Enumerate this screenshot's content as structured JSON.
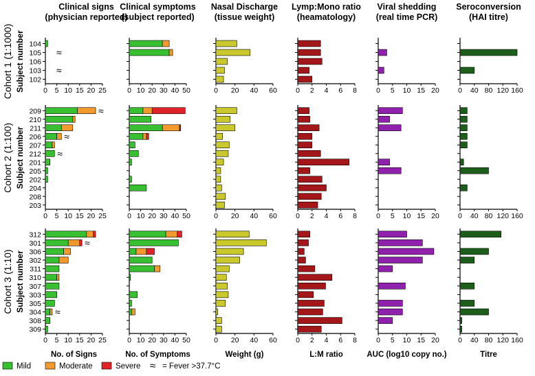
{
  "chart_data": {
    "type": "bar",
    "orientation": "horizontal",
    "colors": {
      "mild": "#39c032",
      "moderate": "#f39a2f",
      "severe": "#e0232a",
      "nasal": "#c9c92d",
      "lm": "#a3171a",
      "viral": "#8f21ad",
      "titre": "#1d5e1c",
      "axis": "#000000"
    },
    "columns": [
      {
        "id": "signs",
        "title1": "Clinical signs",
        "title2": "(physician reported)",
        "xlabel": "No. of Signs",
        "xlim": [
          0,
          25
        ],
        "ticks": [
          "0",
          "5",
          "10",
          "15",
          "20",
          "25"
        ]
      },
      {
        "id": "symptoms",
        "title1": "Clinical symptoms",
        "title2": "(subject reported)",
        "xlabel": "No. of Symptoms",
        "xlim": [
          0,
          50
        ],
        "ticks": [
          "0",
          "10",
          "20",
          "30",
          "40",
          "50"
        ]
      },
      {
        "id": "nasal",
        "title1": "Nasal Discharge",
        "title2": "(tissue weight)",
        "xlabel": "Weight (g)",
        "xlim": [
          0,
          60
        ],
        "ticks": [
          "0",
          "20",
          "40",
          "60"
        ]
      },
      {
        "id": "lm",
        "title1": "Lymp:Mono ratio",
        "title2": "(heamatology)",
        "xlabel": "L:M ratio",
        "xlim": [
          0,
          8
        ],
        "ticks": [
          "0",
          "2",
          "4",
          "6",
          "8"
        ]
      },
      {
        "id": "viral",
        "title1": "Viral shedding",
        "title2": "(real time PCR)",
        "xlabel": "AUC (log10 copy no.)",
        "xlim": [
          0,
          20
        ],
        "ticks": [
          "0",
          "5",
          "10",
          "15",
          "20"
        ]
      },
      {
        "id": "titre",
        "title1": "Seroconversion",
        "title2": "(HAI titre)",
        "xlabel": "Titre",
        "xlim": [
          0,
          160
        ],
        "ticks_by_cohort": [
          [
            "0",
            "40",
            "80",
            "120",
            "160"
          ],
          [
            "0",
            "40",
            "80",
            "120",
            "160"
          ],
          [
            "0",
            "40",
            "80",
            "120",
            "160"
          ]
        ]
      }
    ],
    "cohorts": [
      {
        "label": "Cohort 1 (1:1000)",
        "ylabel": "Subject number",
        "subjects": [
          {
            "id": "104",
            "signs": [
              1,
              0,
              0
            ],
            "symptoms": [
              29,
              6,
              0
            ],
            "nasal": 22,
            "lm": 3.2,
            "viral": 0,
            "titre": 0
          },
          {
            "id": "105",
            "signs": [
              0,
              0,
              0
            ],
            "fever": true,
            "symptoms": [
              35,
              3,
              0
            ],
            "nasal": 36,
            "lm": 3.2,
            "viral": 3,
            "titre": 160
          },
          {
            "id": "106",
            "signs": [
              0,
              0,
              0
            ],
            "symptoms": [
              0,
              0,
              0
            ],
            "nasal": 12,
            "lm": 3.4,
            "viral": 0,
            "titre": 0
          },
          {
            "id": "103",
            "signs": [
              0,
              0,
              0
            ],
            "fever": true,
            "symptoms": [
              0,
              0,
              0
            ],
            "nasal": 9,
            "lm": 1.6,
            "viral": 2,
            "titre": 40
          },
          {
            "id": "102",
            "signs": [
              0,
              0,
              0
            ],
            "symptoms": [
              0,
              0,
              0
            ],
            "nasal": 8,
            "lm": 2.0,
            "viral": 0,
            "titre": 0
          }
        ]
      },
      {
        "label": "Cohort 2 (1:100)",
        "ylabel": "Subject number",
        "subjects": [
          {
            "id": "209",
            "signs": [
              14,
              8,
              0
            ],
            "fever": true,
            "symptoms": [
              12,
              8,
              29
            ],
            "nasal": 22,
            "lm": 1.6,
            "viral": 8.5,
            "titre": 20
          },
          {
            "id": "210",
            "signs": [
              12,
              1,
              0
            ],
            "symptoms": [
              19,
              0,
              0
            ],
            "nasal": 15,
            "lm": 1.7,
            "viral": 4,
            "titre": 20
          },
          {
            "id": "211",
            "signs": [
              7,
              5,
              0
            ],
            "symptoms": [
              29,
              15,
              1
            ],
            "nasal": 20,
            "lm": 3.0,
            "viral": 8,
            "titre": 20
          },
          {
            "id": "206",
            "signs": [
              5,
              2,
              0
            ],
            "fever": true,
            "symptoms": [
              12,
              3,
              2
            ],
            "nasal": 7,
            "lm": 2.0,
            "viral": 0,
            "titre": 20
          },
          {
            "id": "207",
            "signs": [
              3,
              1,
              0
            ],
            "symptoms": [
              5,
              0,
              0
            ],
            "nasal": 14,
            "lm": 2.0,
            "viral": 0,
            "titre": 20
          },
          {
            "id": "212",
            "signs": [
              4,
              0,
              0
            ],
            "fever": true,
            "symptoms": [
              8,
              0,
              0
            ],
            "nasal": 13,
            "lm": 3.2,
            "viral": 0,
            "titre": 0
          },
          {
            "id": "201",
            "signs": [
              2,
              0,
              0
            ],
            "symptoms": [
              2,
              0,
              0
            ],
            "nasal": 8,
            "lm": 7.2,
            "viral": 4,
            "titre": 10
          },
          {
            "id": "205",
            "signs": [
              1,
              0,
              0
            ],
            "symptoms": [
              0,
              0,
              0
            ],
            "nasal": 5,
            "lm": 1.7,
            "viral": 8,
            "titre": 80
          },
          {
            "id": "202",
            "signs": [
              1,
              0,
              0
            ],
            "symptoms": [
              2,
              0,
              0
            ],
            "nasal": 5,
            "lm": 3.4,
            "viral": 0,
            "titre": 0
          },
          {
            "id": "204",
            "signs": [
              0,
              0,
              0
            ],
            "symptoms": [
              15,
              0,
              0
            ],
            "nasal": 6,
            "lm": 4.0,
            "viral": 0,
            "titre": 20
          },
          {
            "id": "208",
            "signs": [
              0,
              0,
              0
            ],
            "symptoms": [
              0,
              0,
              0
            ],
            "nasal": 10,
            "lm": 3.3,
            "viral": 0,
            "titre": 0
          },
          {
            "id": "203",
            "signs": [
              0,
              0,
              0
            ],
            "symptoms": [
              0,
              0,
              0
            ],
            "nasal": 9,
            "lm": 2.8,
            "viral": 0,
            "titre": 0
          }
        ]
      },
      {
        "label": "Cohort 3 (1:10)",
        "ylabel": "Subject number",
        "subjects": [
          {
            "id": "312",
            "signs": [
              18,
              3,
              1
            ],
            "symptoms": [
              32,
              10,
              4
            ],
            "nasal": 35,
            "lm": 1.7,
            "viral": 10,
            "titre": 115
          },
          {
            "id": "301",
            "signs": [
              10,
              5,
              1
            ],
            "fever": true,
            "symptoms": [
              43,
              0,
              0
            ],
            "nasal": 53,
            "lm": 1.5,
            "viral": 15.5,
            "titre": 0
          },
          {
            "id": "306",
            "signs": [
              8,
              3,
              0
            ],
            "symptoms": [
              6,
              9,
              7
            ],
            "nasal": 29,
            "lm": 0.9,
            "viral": 19.5,
            "titre": 80
          },
          {
            "id": "302",
            "signs": [
              6,
              4,
              0
            ],
            "symptoms": [
              20,
              0,
              0
            ],
            "nasal": 25,
            "lm": 1.1,
            "viral": 15.5,
            "titre": 40
          },
          {
            "id": "311",
            "signs": [
              6,
              0,
              0
            ],
            "symptoms": [
              22,
              5,
              0
            ],
            "nasal": 14,
            "lm": 2.4,
            "viral": 5,
            "titre": 0
          },
          {
            "id": "310",
            "signs": [
              5,
              1,
              0
            ],
            "symptoms": [
              1,
              0,
              0
            ],
            "nasal": 11,
            "lm": 4.8,
            "viral": 0,
            "titre": 0
          },
          {
            "id": "307",
            "signs": [
              6,
              0,
              0
            ],
            "symptoms": [
              0,
              0,
              0
            ],
            "nasal": 12,
            "lm": 3.9,
            "viral": 9.5,
            "titre": 40
          },
          {
            "id": "303",
            "signs": [
              5,
              0,
              0
            ],
            "symptoms": [
              7,
              0,
              0
            ],
            "nasal": 13,
            "lm": 2.2,
            "viral": 0,
            "titre": 0
          },
          {
            "id": "305",
            "signs": [
              4,
              0,
              0
            ],
            "symptoms": [
              2,
              0,
              0
            ],
            "nasal": 10,
            "lm": 3.7,
            "viral": 8.5,
            "titre": 40
          },
          {
            "id": "304",
            "signs": [
              2,
              1,
              0
            ],
            "fever": true,
            "symptoms": [
              2,
              3,
              0
            ],
            "nasal": 2,
            "lm": 3.5,
            "viral": 8.5,
            "titre": 80
          },
          {
            "id": "308",
            "signs": [
              2,
              0,
              0
            ],
            "symptoms": [
              0,
              0,
              0
            ],
            "nasal": 6,
            "lm": 6.2,
            "viral": 5,
            "titre": 5
          },
          {
            "id": "309",
            "signs": [
              1,
              0,
              0
            ],
            "symptoms": [
              0,
              0,
              0
            ],
            "nasal": 6,
            "lm": 3.3,
            "viral": 0,
            "titre": 5
          }
        ]
      }
    ],
    "legend": {
      "mild": "Mild",
      "moderate": "Moderate",
      "severe": "Severe",
      "fever_symbol": "≈",
      "fever_text": "= Fever >37.7°C"
    }
  }
}
